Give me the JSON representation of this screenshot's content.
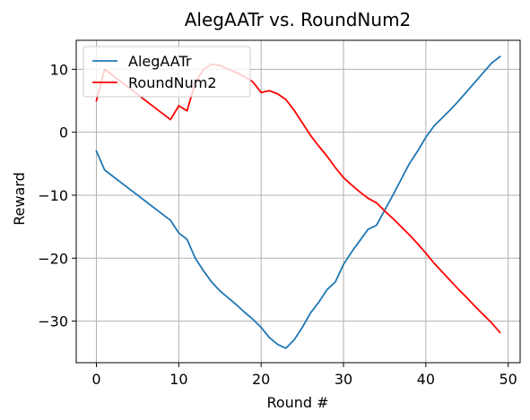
{
  "chart_data": {
    "type": "line",
    "title": "AlegAATr vs. RoundNum2",
    "xlabel": "Round #",
    "ylabel": "Reward",
    "xlim": [
      -2.45,
      51.45
    ],
    "ylim": [
      -36.6,
      14.6
    ],
    "xticks": [
      0,
      10,
      20,
      30,
      40,
      50
    ],
    "yticks": [
      -30,
      -20,
      -10,
      0,
      10
    ],
    "grid": true,
    "legend_position": "upper-left",
    "x": [
      0,
      1,
      2,
      3,
      4,
      5,
      6,
      7,
      8,
      9,
      10,
      11,
      12,
      13,
      14,
      15,
      16,
      17,
      18,
      19,
      20,
      21,
      22,
      23,
      24,
      25,
      26,
      27,
      28,
      29,
      30,
      31,
      32,
      33,
      34,
      35,
      36,
      37,
      38,
      39,
      40,
      41,
      42,
      43,
      44,
      45,
      46,
      47,
      48,
      49
    ],
    "series": [
      {
        "name": "AlegAATr",
        "color": "#1f77b4",
        "values": [
          -3,
          -6,
          -7,
          -8,
          -9,
          -10,
          -11,
          -12,
          -13,
          -14,
          -16,
          -17,
          -20,
          -22,
          -23.8,
          -25.2,
          -26.3,
          -27.4,
          -28.6,
          -29.7,
          -31,
          -32.6,
          -33.7,
          -34.3,
          -33,
          -31,
          -28.7,
          -27,
          -25,
          -23.8,
          -21,
          -19,
          -17.2,
          -15.4,
          -14.8,
          -12.4,
          -10,
          -7.5,
          -5,
          -3,
          -0.8,
          1,
          2.3,
          3.6,
          5,
          6.5,
          8,
          9.5,
          11,
          12
        ]
      },
      {
        "name": "RoundNum2",
        "color": "#ff0000",
        "values": [
          5,
          10,
          9,
          8,
          7,
          6,
          5,
          4,
          3,
          2,
          4.2,
          3.4,
          7.8,
          10,
          10.8,
          10.6,
          10,
          9.5,
          8.8,
          8,
          6.3,
          6.6,
          6.1,
          5.2,
          3.5,
          1.5,
          -0.5,
          -2.2,
          -3.8,
          -5.6,
          -7.2,
          -8.4,
          -9.5,
          -10.5,
          -11.2,
          -12.5,
          -13.7,
          -15,
          -16.3,
          -17.7,
          -19.2,
          -20.8,
          -22.2,
          -23.6,
          -25,
          -26.3,
          -27.7,
          -29,
          -30.3,
          -31.8
        ]
      }
    ]
  }
}
